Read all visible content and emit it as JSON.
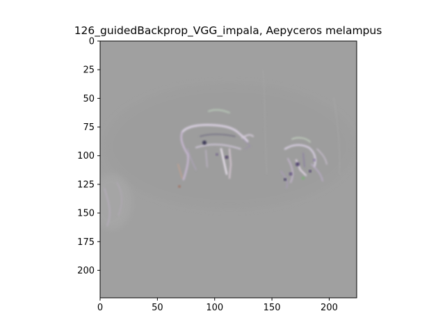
{
  "chart_data": {
    "type": "heatmap",
    "title": "126_guidedBackprop_VGG_impala, Aepyceros melampus",
    "xlabel": "",
    "ylabel": "",
    "xlim": [
      0,
      224
    ],
    "ylim": [
      224,
      0
    ],
    "x_ticks": [
      0,
      50,
      100,
      150,
      200
    ],
    "y_ticks": [
      0,
      25,
      50,
      75,
      100,
      125,
      150,
      175,
      200
    ],
    "image_size": [
      224,
      224
    ],
    "background_color": "#a0a0a0",
    "content": "guided backpropagation saliency map (grayscale with faint color fringes) showing outlines of impala: one standing animal near x 70-125, y 70-125 and a smaller cluster near x 155-200, y 85-130"
  }
}
